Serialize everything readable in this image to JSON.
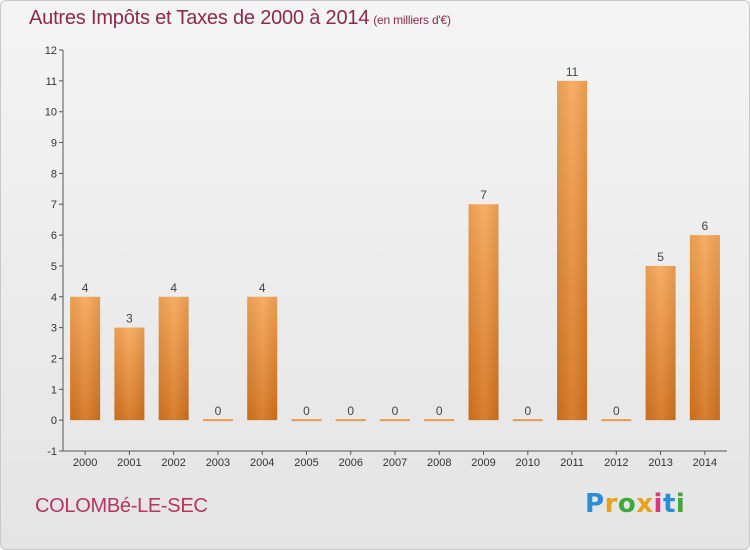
{
  "title": "Autres Impôts et Taxes de 2000 à 2014",
  "subtitle": "(en milliers d'€)",
  "town": "COLOMBé-LE-SEC",
  "logo": [
    "P",
    "r",
    "o",
    "x",
    "i",
    "t",
    "i"
  ],
  "colors": {
    "bar_light": "#f7a758",
    "bar_dark": "#d4741e",
    "title": "#8b2a4a",
    "town": "#b5365f"
  },
  "chart_data": {
    "type": "bar",
    "categories": [
      "2000",
      "2001",
      "2002",
      "2003",
      "2004",
      "2005",
      "2006",
      "2007",
      "2008",
      "2009",
      "2010",
      "2011",
      "2012",
      "2013",
      "2014"
    ],
    "values": [
      4,
      3,
      4,
      0,
      4,
      0,
      0,
      0,
      0,
      7,
      0,
      11,
      0,
      5,
      6
    ],
    "y_ticks": [
      -1,
      0,
      1,
      2,
      3,
      4,
      5,
      6,
      7,
      8,
      9,
      10,
      11,
      12
    ],
    "ylim": [
      -1,
      12
    ],
    "grid": false
  }
}
